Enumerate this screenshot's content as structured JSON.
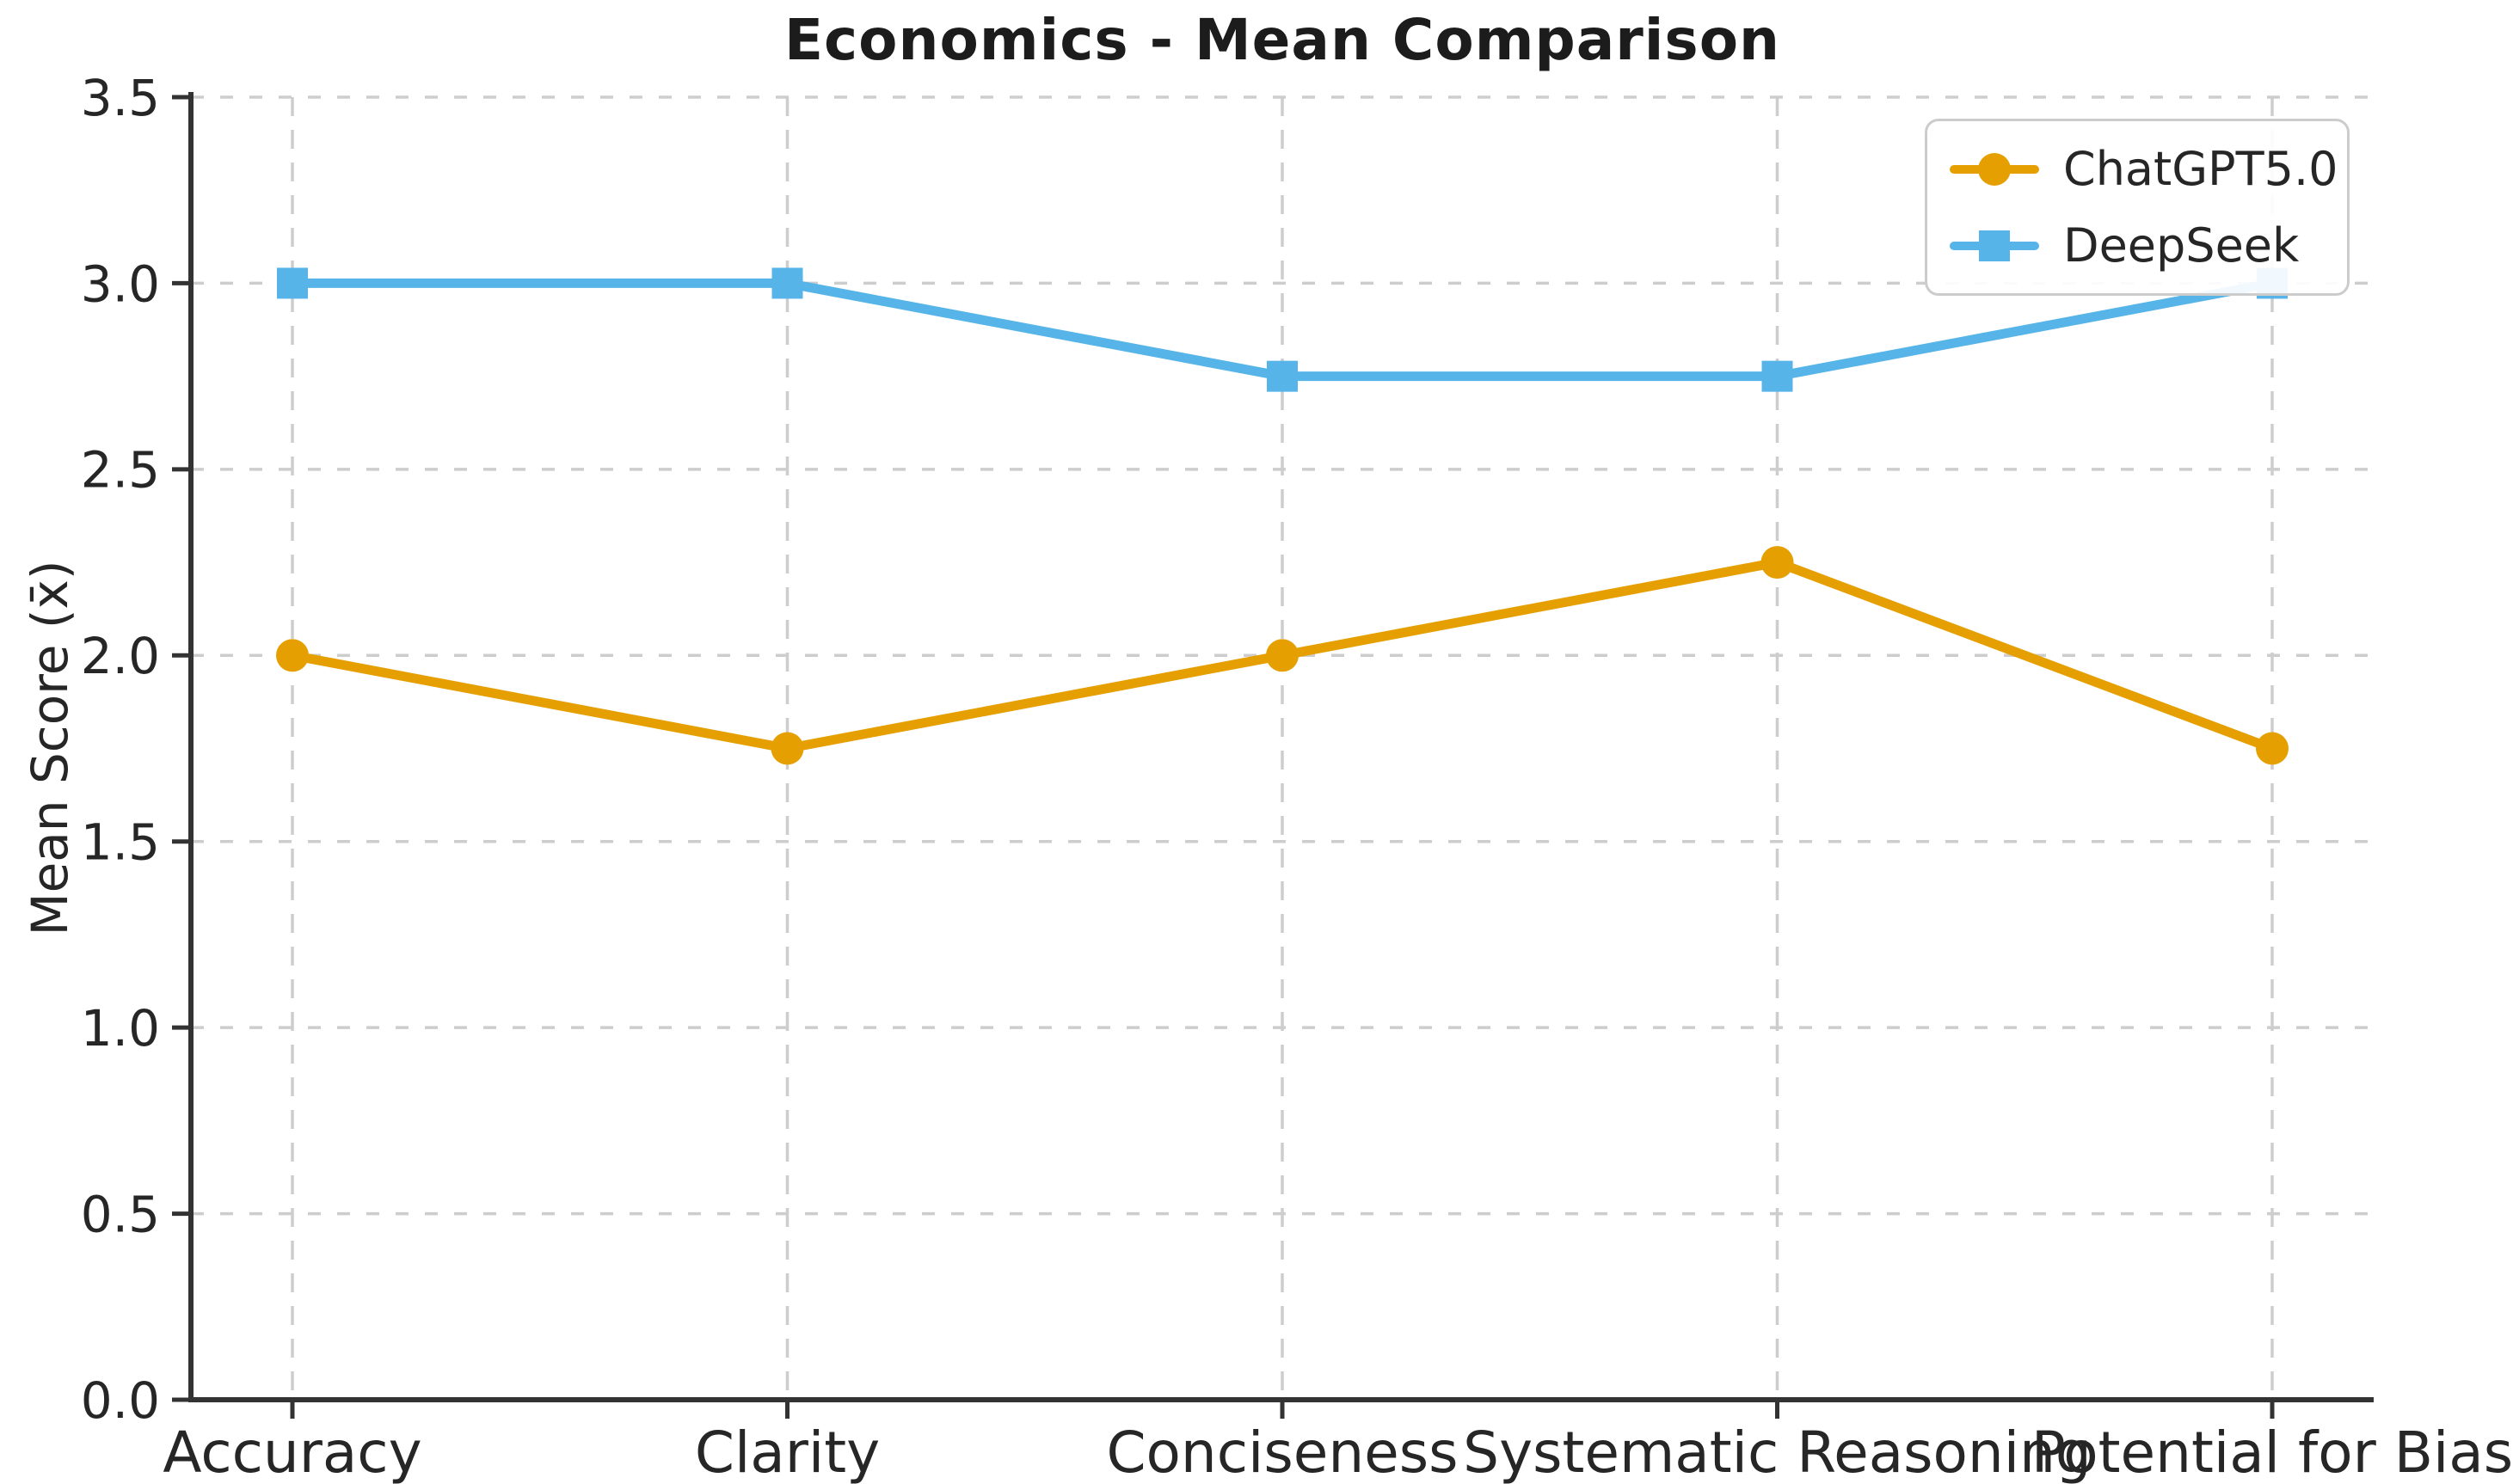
{
  "title": "Economics - Mean Comparison",
  "chart_data": {
    "type": "line",
    "title": "Economics - Mean Comparison",
    "xlabel": "",
    "ylabel": "Mean Score (x̄)",
    "categories": [
      "Accuracy",
      "Clarity",
      "Conciseness",
      "Systematic Reasoning",
      "Potential for Bias"
    ],
    "series": [
      {
        "name": "ChatGPT5.0",
        "marker": "circle",
        "color": "#E69F00",
        "values": [
          2.0,
          1.75,
          2.0,
          2.25,
          1.75
        ]
      },
      {
        "name": "DeepSeek",
        "marker": "square",
        "color": "#56B4E9",
        "values": [
          3.0,
          3.0,
          2.75,
          2.75,
          3.0
        ]
      }
    ],
    "ylim": [
      0.0,
      3.5
    ],
    "yticks": [
      0.0,
      0.5,
      1.0,
      1.5,
      2.0,
      2.5,
      3.0,
      3.5
    ],
    "grid": true,
    "legend_position": "upper right"
  },
  "colors": {
    "chatgpt_orange": "#E69F00",
    "deepseek_blue": "#56B4E9",
    "gridline": "#cdcdcd",
    "spine": "#333333",
    "tick_label": "#262626",
    "title_text": "#1c1c1c",
    "background": "#ffffff"
  }
}
